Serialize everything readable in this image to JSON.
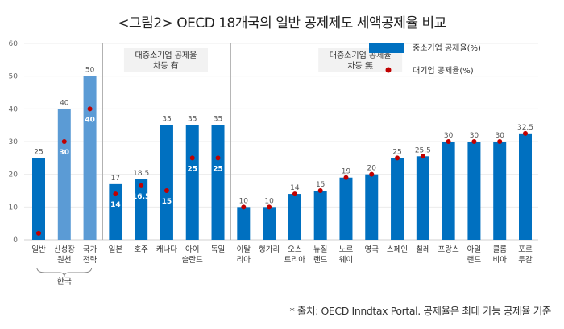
{
  "title": "<그림2> OECD 18개국의 일반 공제제도 세액공제율 비교",
  "footnote": "* 출처: OECD Inndtax Portal. 공제율은 최대 가능 공제율 기준",
  "chart_data": {
    "type": "bar",
    "title": "<그림2> OECD 18개국의 일반 공제제도 세액공제율 비교",
    "xlabel": "",
    "ylabel": "",
    "ylim": [
      0,
      60
    ],
    "yticks": [
      0,
      10,
      20,
      30,
      40,
      50,
      60
    ],
    "grid": true,
    "legend_position": "top-right",
    "categories": [
      [
        "일반"
      ],
      [
        "신성장",
        "원천"
      ],
      [
        "국가",
        "전략"
      ],
      [
        "일본"
      ],
      [
        "호주"
      ],
      [
        "캐나다"
      ],
      [
        "아이",
        "슬란드"
      ],
      [
        "독일"
      ],
      [
        "이탈",
        "리아"
      ],
      [
        "헝가리"
      ],
      [
        "오스",
        "트리아"
      ],
      [
        "뉴질",
        "랜드"
      ],
      [
        "노르",
        "웨이"
      ],
      [
        "영국"
      ],
      [
        "스페인"
      ],
      [
        "칠레"
      ],
      [
        "프랑스"
      ],
      [
        "아일",
        "랜드"
      ],
      [
        "콜롬",
        "비아"
      ],
      [
        "포르",
        "투갈"
      ]
    ],
    "series": [
      {
        "name": "중소기업 공제율(%)",
        "kind": "bar",
        "color": "#0070C0",
        "values": [
          25,
          40,
          50,
          17,
          18.5,
          35,
          35,
          35,
          10,
          10,
          14,
          15,
          19,
          20,
          25,
          25.5,
          30,
          30,
          30,
          32.5
        ],
        "value_labels": [
          "25",
          "40",
          "50",
          "17",
          "18.5",
          "35",
          "35",
          "35",
          "10",
          "10",
          "14",
          "15",
          "19",
          "20",
          "25",
          "25.5",
          "30",
          "30",
          "30",
          "32.5"
        ],
        "bar_colors": [
          "#0070C0",
          "#5B9BD5",
          "#5B9BD5",
          "#0070C0",
          "#0070C0",
          "#0070C0",
          "#0070C0",
          "#0070C0",
          "#0070C0",
          "#0070C0",
          "#0070C0",
          "#0070C0",
          "#0070C0",
          "#0070C0",
          "#0070C0",
          "#0070C0",
          "#0070C0",
          "#0070C0",
          "#0070C0",
          "#0070C0"
        ]
      },
      {
        "name": "대기업 공제율(%)",
        "kind": "dot",
        "color": "#C00000",
        "values": [
          2,
          30,
          40,
          14,
          16.5,
          15,
          25,
          25,
          10,
          10,
          14,
          15,
          19,
          20,
          25,
          25.5,
          30,
          30,
          30,
          32.5
        ],
        "inner_labels": [
          "2",
          "30",
          "40",
          "14",
          "16.5",
          "15",
          "25",
          "25",
          null,
          null,
          null,
          null,
          null,
          null,
          null,
          null,
          null,
          null,
          null,
          null
        ]
      }
    ],
    "groups": [
      {
        "label": "한국",
        "brace": true,
        "start": 0,
        "end": 2
      },
      {
        "label_lines": [
          "대중소기업 공제율",
          "차등 有"
        ],
        "start": 3,
        "end": 7
      },
      {
        "label_lines": [
          "대중소기업 공제율",
          "차등 無"
        ],
        "start": 8,
        "end": 19
      }
    ],
    "group_separators_after": [
      2,
      7
    ]
  }
}
